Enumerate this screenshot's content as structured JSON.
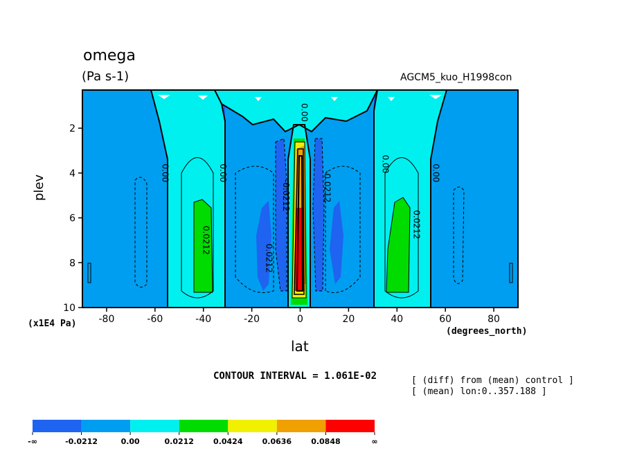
{
  "chart_data": {
    "type": "contour",
    "title": "omega",
    "units": "(Pa s-1)",
    "run_name": "AGCM5_kuo_H1998con",
    "xlabel": "lat",
    "ylabel": "plev",
    "x_unit_label": "(degrees_north)",
    "y_unit_label": "(x1E4 Pa)",
    "xlim": [
      -90,
      90
    ],
    "ylim": [
      10,
      0.3
    ],
    "x_ticks": [
      -80,
      -60,
      -40,
      -20,
      0,
      20,
      40,
      60,
      80
    ],
    "y_ticks": [
      2,
      4,
      6,
      8,
      10
    ],
    "contour_interval_text": "CONTOUR INTERVAL = 1.061E-02",
    "notes": [
      "[ (diff) from (mean) control ]",
      "[ (mean) lon:0..357.188 ]"
    ],
    "contour_labels": [
      {
        "text": "0.00",
        "lat": -57,
        "plev": 4.0
      },
      {
        "text": "0.00",
        "lat": -33,
        "plev": 4.0
      },
      {
        "text": "0.0212",
        "lat": -40,
        "plev": 7.0
      },
      {
        "text": "0.0212",
        "lat": -14,
        "plev": 7.8
      },
      {
        "text": "-0.0212",
        "lat": -7,
        "plev": 5.0
      },
      {
        "text": "0.00",
        "lat": 0.5,
        "plev": 1.3
      },
      {
        "text": "-0.0212",
        "lat": 10,
        "plev": 4.6
      },
      {
        "text": "0.00",
        "lat": 34,
        "plev": 3.6
      },
      {
        "text": "0.0212",
        "lat": 47,
        "plev": 6.3
      },
      {
        "text": "0.00",
        "lat": 55,
        "plev": 4.0
      }
    ],
    "colorbar": {
      "boundaries": [
        "-∞",
        "-0.0212",
        "0.00",
        "0.0212",
        "0.0424",
        "0.0636",
        "0.0848",
        "∞"
      ],
      "colors": [
        "#1e64f0",
        "#009ef0",
        "#00f0f0",
        "#00dc00",
        "#f0f000",
        "#f0a000",
        "#ff0000"
      ]
    }
  }
}
